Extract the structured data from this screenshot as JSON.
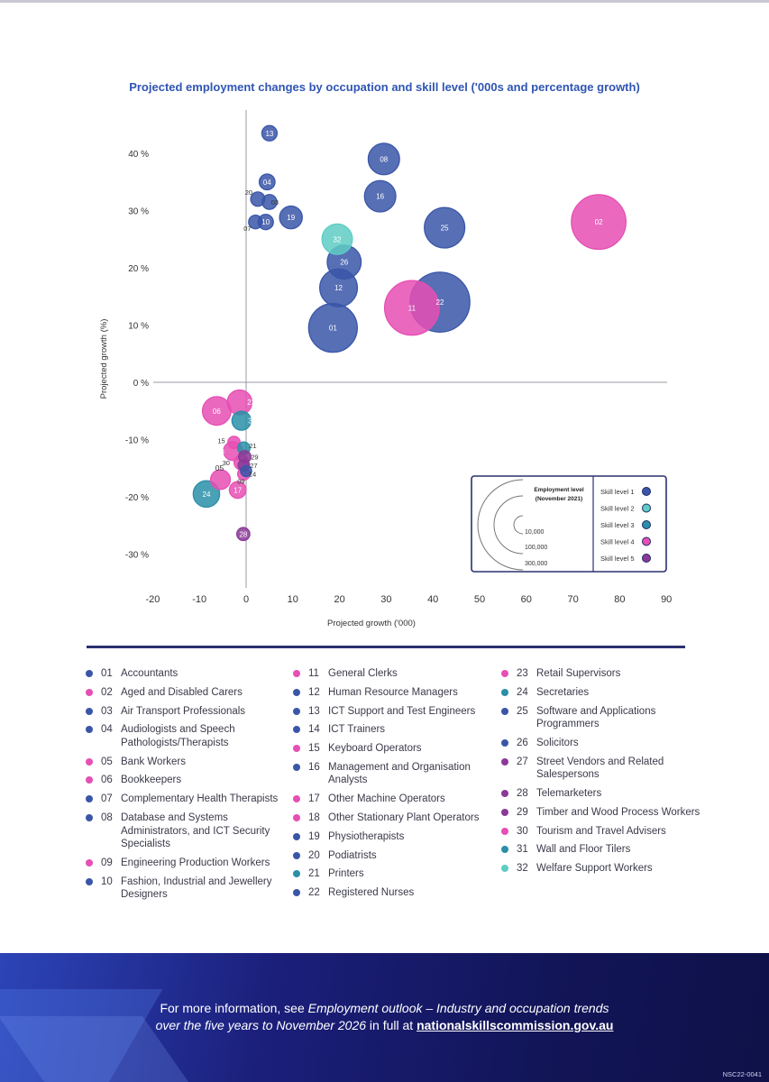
{
  "page": {
    "code": "NSC22-0041"
  },
  "footer": {
    "prefix": "For more information, see ",
    "italic": "Employment outlook – Industry and occupation trends",
    "line2_italic": "over the five years to November 2026",
    "mid": " in full at ",
    "link": "nationalskillscommission.gov.au"
  },
  "chart_data": {
    "type": "scatter",
    "bubble": true,
    "title": "Projected employment changes by occupation and skill level ('000s and percentage growth)",
    "xlabel": "Projected growth ('000)",
    "ylabel": "Projected growth (%)",
    "xlim": [
      -20,
      90
    ],
    "ylim": [
      -35,
      47
    ],
    "x_ticks": [
      -20,
      -10,
      0,
      10,
      20,
      30,
      40,
      50,
      60,
      70,
      80,
      90
    ],
    "y_ticks": [
      40,
      30,
      20,
      10,
      0,
      -10,
      -20,
      -30
    ],
    "y_tick_labels": [
      "40 %",
      "30 %",
      "20 %",
      "10 %",
      "0 %",
      "-10 %",
      "-20 %",
      "-30 %"
    ],
    "grid": false,
    "skill_colors": {
      "1": "#3a56a8",
      "2": "#5ecdc4",
      "3": "#2a8fa8",
      "4": "#e64fb4",
      "5": "#8a3a96"
    },
    "legend": {
      "placement": "bottom-right",
      "employment_title": "Employment level (November 2021)",
      "sizes": [
        {
          "label": "10,000",
          "value": 10000
        },
        {
          "label": "100,000",
          "value": 100000
        },
        {
          "label": "300,000",
          "value": 300000
        }
      ],
      "skill_levels": [
        {
          "label": "Skill level 1",
          "level": 1
        },
        {
          "label": "Skill level 2",
          "level": 2
        },
        {
          "label": "Skill level 3",
          "level": 3
        },
        {
          "label": "Skill level 4",
          "level": 4
        },
        {
          "label": "Skill level 5",
          "level": 5
        }
      ]
    },
    "points": [
      {
        "id": "01",
        "name": "Accountants",
        "skill": 1,
        "x": 18.6,
        "y": 9.5,
        "size": 200000
      },
      {
        "id": "02",
        "name": "Aged and Disabled Carers",
        "skill": 4,
        "x": 75.5,
        "y": 28,
        "size": 260000
      },
      {
        "id": "03",
        "name": "Air Transport Professionals",
        "skill": 1,
        "x": 5,
        "y": 31.5,
        "size": 8000
      },
      {
        "id": "04",
        "name": "Audiologists and Speech Pathologists/Therapists",
        "skill": 1,
        "x": 4.5,
        "y": 35,
        "size": 10000
      },
      {
        "id": "05",
        "name": "Bank Workers",
        "skill": 4,
        "x": -5.5,
        "y": -17,
        "size": 20000
      },
      {
        "id": "06",
        "name": "Bookkeepers",
        "skill": 4,
        "x": -6.3,
        "y": -5,
        "size": 55000
      },
      {
        "id": "07",
        "name": "Complementary Health Therapists",
        "skill": 1,
        "x": 2,
        "y": 28,
        "size": 6000
      },
      {
        "id": "08",
        "name": "Database and Systems Administrators, and ICT Security Specialists",
        "skill": 1,
        "x": 29.5,
        "y": 39,
        "size": 70000
      },
      {
        "id": "09",
        "name": "Engineering Production Workers",
        "skill": 4,
        "x": -0.5,
        "y": -16,
        "size": 4000
      },
      {
        "id": "10",
        "name": "Fashion, Industrial and Jewellery Designers",
        "skill": 1,
        "x": 4.2,
        "y": 28,
        "size": 9000
      },
      {
        "id": "11",
        "name": "General Clerks",
        "skill": 4,
        "x": 35.5,
        "y": 13,
        "size": 260000
      },
      {
        "id": "12",
        "name": "Human Resource Managers",
        "skill": 1,
        "x": 19.8,
        "y": 16.5,
        "size": 110000
      },
      {
        "id": "13",
        "name": "ICT Support and Test Engineers",
        "skill": 1,
        "x": 5,
        "y": 43.5,
        "size": 9000
      },
      {
        "id": "14",
        "name": "ICT Trainers",
        "skill": 1,
        "x": 0,
        "y": -15.5,
        "size": 2500
      },
      {
        "id": "15",
        "name": "Keyboard Operators",
        "skill": 4,
        "x": -2.6,
        "y": -10.5,
        "size": 4000
      },
      {
        "id": "16",
        "name": "Management and Organisation Analysts",
        "skill": 1,
        "x": 28.7,
        "y": 32.5,
        "size": 70000
      },
      {
        "id": "17",
        "name": "Other Machine Operators",
        "skill": 4,
        "x": -1.8,
        "y": -18.8,
        "size": 12000
      },
      {
        "id": "18",
        "name": "Other Stationary Plant Operators",
        "skill": 4,
        "x": -2.8,
        "y": -12,
        "size": 18000
      },
      {
        "id": "19",
        "name": "Physiotherapists",
        "skill": 1,
        "x": 9.6,
        "y": 28.8,
        "size": 30000
      },
      {
        "id": "20",
        "name": "Podiatrists",
        "skill": 1,
        "x": 2.5,
        "y": 32,
        "size": 7000
      },
      {
        "id": "21",
        "name": "Printers",
        "skill": 3,
        "x": -0.5,
        "y": -11.5,
        "size": 4000
      },
      {
        "id": "22",
        "name": "Registered Nurses",
        "skill": 1,
        "x": 41.5,
        "y": 14,
        "size": 320000
      },
      {
        "id": "23",
        "name": "Retail Supervisors",
        "skill": 4,
        "x": -1.4,
        "y": -3.5,
        "size": 38000
      },
      {
        "id": "24",
        "name": "Secretaries",
        "skill": 3,
        "x": -8.5,
        "y": -19.5,
        "size": 45000
      },
      {
        "id": "25",
        "name": "Software and Applications Programmers",
        "skill": 1,
        "x": 42.5,
        "y": 27,
        "size": 130000
      },
      {
        "id": "26",
        "name": "Solicitors",
        "skill": 1,
        "x": 21,
        "y": 21,
        "size": 85000
      },
      {
        "id": "27",
        "name": "Street Vendors and Related Salespersons",
        "skill": 5,
        "x": -0.5,
        "y": -14.5,
        "size": 3000
      },
      {
        "id": "28",
        "name": "Telemarketers",
        "skill": 5,
        "x": -0.6,
        "y": -26.5,
        "size": 5000
      },
      {
        "id": "29",
        "name": "Timber and Wood Process Workers",
        "skill": 5,
        "x": -0.3,
        "y": -13,
        "size": 4000
      },
      {
        "id": "30",
        "name": "Tourism and Travel Advisers",
        "skill": 4,
        "x": -1,
        "y": -14,
        "size": 8000
      },
      {
        "id": "31",
        "name": "Wall and Floor Tilers",
        "skill": 3,
        "x": -1,
        "y": -6.7,
        "size": 18000
      },
      {
        "id": "32",
        "name": "Welfare Support Workers",
        "skill": 2,
        "x": 19.5,
        "y": 25,
        "size": 65000
      }
    ],
    "legend_columns": [
      [
        {
          "id": "01",
          "label": "Accountants",
          "skill": 1
        },
        {
          "id": "02",
          "label": "Aged and Disabled Carers",
          "skill": 4
        },
        {
          "id": "03",
          "label": "Air Transport Professionals",
          "skill": 1
        },
        {
          "id": "04",
          "label": "Audiologists and Speech Pathologists/Therapists",
          "skill": 1
        },
        {
          "id": "05",
          "label": "Bank Workers",
          "skill": 4
        },
        {
          "id": "06",
          "label": "Bookkeepers",
          "skill": 4
        },
        {
          "id": "07",
          "label": "Complementary Health Therapists",
          "skill": 1
        },
        {
          "id": "08",
          "label": "Database and Systems Administrators, and ICT Security Specialists",
          "skill": 1
        },
        {
          "id": "09",
          "label": "Engineering Production Workers",
          "skill": 4
        },
        {
          "id": "10",
          "label": "Fashion, Industrial and Jewellery Designers",
          "skill": 1
        }
      ],
      [
        {
          "id": "11",
          "label": "General Clerks",
          "skill": 4
        },
        {
          "id": "12",
          "label": "Human Resource Managers",
          "skill": 1
        },
        {
          "id": "13",
          "label": "ICT Support and Test Engineers",
          "skill": 1
        },
        {
          "id": "14",
          "label": "ICT Trainers",
          "skill": 1
        },
        {
          "id": "15",
          "label": "Keyboard Operators",
          "skill": 4
        },
        {
          "id": "16",
          "label": "Management and Organisation Analysts",
          "skill": 1
        },
        {
          "id": "17",
          "label": "Other Machine Operators",
          "skill": 4
        },
        {
          "id": "18",
          "label": "Other Stationary Plant Operators",
          "skill": 4
        },
        {
          "id": "19",
          "label": "Physiotherapists",
          "skill": 1
        },
        {
          "id": "20",
          "label": "Podiatrists",
          "skill": 1
        },
        {
          "id": "21",
          "label": "Printers",
          "skill": 3
        },
        {
          "id": "22",
          "label": "Registered Nurses",
          "skill": 1
        }
      ],
      [
        {
          "id": "23",
          "label": "Retail Supervisors",
          "skill": 4
        },
        {
          "id": "24",
          "label": "Secretaries",
          "skill": 3
        },
        {
          "id": "25",
          "label": "Software and Applications Programmers",
          "skill": 1
        },
        {
          "id": "26",
          "label": "Solicitors",
          "skill": 1
        },
        {
          "id": "27",
          "label": "Street Vendors and Related Salespersons",
          "skill": 5
        },
        {
          "id": "28",
          "label": "Telemarketers",
          "skill": 5
        },
        {
          "id": "29",
          "label": "Timber and Wood Process Workers",
          "skill": 5
        },
        {
          "id": "30",
          "label": "Tourism and Travel Advisers",
          "skill": 4
        },
        {
          "id": "31",
          "label": "Wall and Floor Tilers",
          "skill": 3
        },
        {
          "id": "32",
          "label": "Welfare Support Workers",
          "skill": 2
        }
      ]
    ]
  }
}
